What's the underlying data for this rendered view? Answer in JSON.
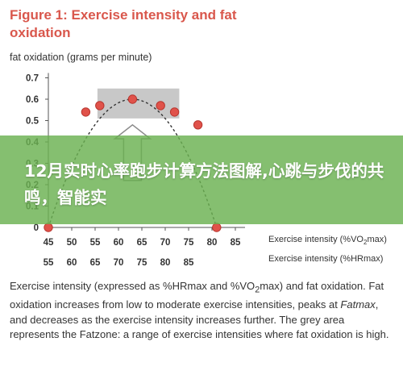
{
  "figure": {
    "title": "Figure 1: Exercise intensity and fat oxidation",
    "y_axis_label": "fat oxidation (grams per minute)",
    "caption_parts": [
      "Exercise intensity (expressed as %HRmax and %VO",
      "2",
      "max) and fat oxidation. Fat oxidation increases from low to moderate exercise intensities, peaks at ",
      "Fatmax",
      ", and decreases as the exercise intensity increases further. The grey area represents the Fatzone: a range of exercise intensities where fat oxidation is high."
    ]
  },
  "banner": {
    "text": "12月实时心率跑步计算方法图解,心跳与步伐的共鸣，智能实"
  },
  "chart_data": {
    "type": "scatter",
    "title": "Figure 1: Exercise intensity and fat oxidation",
    "ylabel": "fat oxidation (grams per minute)",
    "xlabel_primary": "Exercise intensity (%VO2max)",
    "xlabel_secondary": "Exercise intensity (%HRmax)",
    "ylim": [
      0,
      0.7
    ],
    "yticks": [
      "0",
      "0.1",
      "0.2",
      "0.3",
      "0.4",
      "0.5",
      "0.6",
      "0.7"
    ],
    "xlim": [
      45,
      85
    ],
    "xticks_primary": [
      "45",
      "50",
      "55",
      "60",
      "65",
      "70",
      "75",
      "80",
      "85"
    ],
    "xticks_secondary": [
      "55",
      "60",
      "65",
      "70",
      "75",
      "80",
      "85"
    ],
    "x": [
      45,
      53,
      56,
      63,
      69,
      72,
      77,
      81
    ],
    "y": [
      0,
      0.54,
      0.57,
      0.6,
      0.57,
      0.54,
      0.48,
      0
    ]
  },
  "fatzone": {
    "x_range": [
      55.5,
      73
    ],
    "y_range": [
      0.51,
      0.65
    ]
  },
  "colors": {
    "title": "#d9574c",
    "point_fill": "#e0524a",
    "point_stroke": "#b8362f",
    "curve": "#333333",
    "fatzone": "#c8c8c8",
    "banner": "#6ab150",
    "arrow_fill": "#ffffff",
    "arrow_stroke": "#8a8a8a"
  },
  "icons": {
    "peak_arrow": "up-arrow-icon"
  }
}
